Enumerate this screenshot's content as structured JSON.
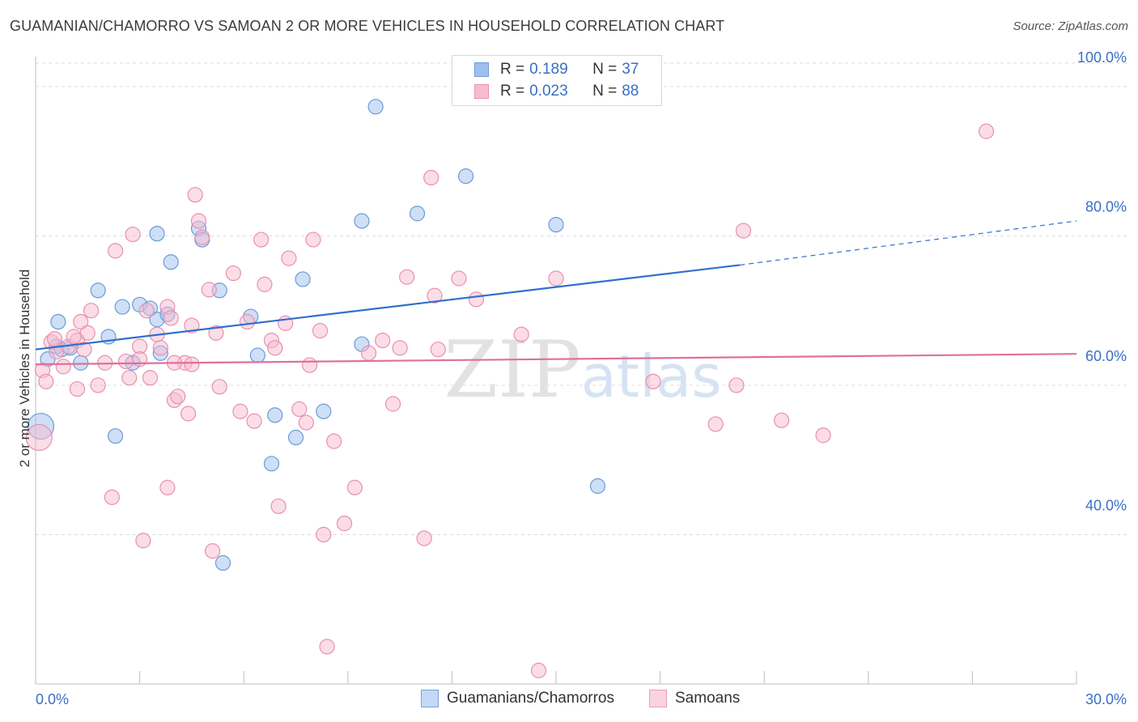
{
  "title": "GUAMANIAN/CHAMORRO VS SAMOAN 2 OR MORE VEHICLES IN HOUSEHOLD CORRELATION CHART",
  "source": "Source: ZipAtlas.com",
  "watermark": "ZIPatlas",
  "legend_top": {
    "rows": [
      {
        "r_label": "R =",
        "r_value": "0.189",
        "n_label": "N =",
        "n_value": "37",
        "color": "#9ec0ee",
        "border": "#6b9bd8"
      },
      {
        "r_label": "R =",
        "r_value": "0.023",
        "n_label": "N =",
        "n_value": "88",
        "color": "#f7bcd0",
        "border": "#e890ae"
      }
    ]
  },
  "legend_bottom": [
    {
      "label": "Guamanians/Chamorros",
      "color": "#c5d8f5",
      "border": "#7aa3dd"
    },
    {
      "label": "Samoans",
      "color": "#fbd3e0",
      "border": "#e99cb7"
    }
  ],
  "chart_data": {
    "type": "scatter",
    "title": "GUAMANIAN/CHAMORRO VS SAMOAN 2 OR MORE VEHICLES IN HOUSEHOLD CORRELATION CHART",
    "xlabel": "",
    "ylabel": "2 or more Vehicles in Household",
    "xlim": [
      0,
      30
    ],
    "ylim": [
      20,
      104
    ],
    "x_tick_labels": [
      {
        "value": 0,
        "label": "0.0%"
      },
      {
        "value": 30,
        "label": "30.0%"
      }
    ],
    "y_tick_labels": [
      {
        "value": 40,
        "label": "40.0%"
      },
      {
        "value": 60,
        "label": "60.0%"
      },
      {
        "value": 80,
        "label": "80.0%"
      },
      {
        "value": 100,
        "label": "100.0%"
      }
    ],
    "grid": true,
    "series": [
      {
        "name": "Guamanians/Chamorros",
        "color": "#9ec0ee",
        "stroke": "#6b9bd8",
        "trend_color": "#2f6fcf",
        "trend": {
          "x0": 0,
          "y0": 64.8,
          "x1": 20.3,
          "y1": 76.1,
          "dash_to_x": 30,
          "dash_to_y": 82.0
        },
        "points": [
          [
            0.15,
            54.5,
            16
          ],
          [
            0.35,
            63.5,
            9
          ],
          [
            0.6,
            65.2,
            9
          ],
          [
            0.75,
            64.8,
            9
          ],
          [
            1.0,
            65.0,
            9
          ],
          [
            1.3,
            63.0,
            9
          ],
          [
            0.65,
            68.5,
            9
          ],
          [
            2.1,
            66.5,
            9
          ],
          [
            1.8,
            72.7,
            9
          ],
          [
            2.5,
            70.5,
            9
          ],
          [
            3.0,
            70.8,
            9
          ],
          [
            3.3,
            70.3,
            9
          ],
          [
            3.5,
            68.8,
            9
          ],
          [
            3.8,
            69.5,
            9
          ],
          [
            3.6,
            64.3,
            9
          ],
          [
            2.8,
            63.0,
            9
          ],
          [
            3.9,
            76.5,
            9
          ],
          [
            4.7,
            81.0,
            9
          ],
          [
            4.8,
            79.5,
            9
          ],
          [
            5.3,
            72.7,
            9
          ],
          [
            3.5,
            80.3,
            9
          ],
          [
            6.2,
            69.2,
            9
          ],
          [
            6.4,
            64.0,
            9
          ],
          [
            6.9,
            56.0,
            9
          ],
          [
            7.5,
            53.0,
            9
          ],
          [
            7.7,
            74.2,
            9
          ],
          [
            8.3,
            56.5,
            9
          ],
          [
            6.8,
            49.5,
            9
          ],
          [
            2.3,
            53.2,
            9
          ],
          [
            5.4,
            36.2,
            9
          ],
          [
            9.4,
            65.5,
            9
          ],
          [
            9.4,
            82.0,
            9
          ],
          [
            9.8,
            97.3,
            9
          ],
          [
            11.0,
            83.0,
            9
          ],
          [
            12.4,
            88.0,
            9
          ],
          [
            15.0,
            81.5,
            9
          ],
          [
            16.2,
            46.5,
            9
          ]
        ]
      },
      {
        "name": "Samoans",
        "color": "#f7bcd0",
        "stroke": "#e890ae",
        "trend_color": "#e0709a",
        "trend": {
          "x0": 0,
          "y0": 62.8,
          "x1": 30,
          "y1": 64.2
        },
        "points": [
          [
            0.1,
            53.0,
            16
          ],
          [
            0.2,
            62.0,
            9
          ],
          [
            0.3,
            60.5,
            9
          ],
          [
            0.45,
            65.8,
            9
          ],
          [
            0.6,
            64.5,
            9
          ],
          [
            0.55,
            66.2,
            9
          ],
          [
            0.8,
            62.5,
            9
          ],
          [
            0.95,
            65.2,
            9
          ],
          [
            1.2,
            66.0,
            9
          ],
          [
            1.4,
            64.8,
            9
          ],
          [
            1.1,
            66.5,
            9
          ],
          [
            1.3,
            68.5,
            9
          ],
          [
            1.5,
            67.0,
            9
          ],
          [
            1.6,
            70.0,
            9
          ],
          [
            1.2,
            59.5,
            9
          ],
          [
            2.0,
            63.0,
            9
          ],
          [
            2.3,
            78.0,
            9
          ],
          [
            2.8,
            80.2,
            9
          ],
          [
            2.7,
            61.0,
            9
          ],
          [
            3.0,
            65.2,
            9
          ],
          [
            3.0,
            63.5,
            9
          ],
          [
            3.2,
            70.0,
            9
          ],
          [
            3.5,
            66.8,
            9
          ],
          [
            3.6,
            65.0,
            9
          ],
          [
            3.8,
            70.5,
            9
          ],
          [
            3.9,
            69.0,
            9
          ],
          [
            4.0,
            58.0,
            9
          ],
          [
            4.1,
            58.5,
            9
          ],
          [
            4.3,
            63.0,
            9
          ],
          [
            4.5,
            62.8,
            9
          ],
          [
            4.4,
            56.2,
            9
          ],
          [
            4.6,
            85.5,
            9
          ],
          [
            4.7,
            82.0,
            9
          ],
          [
            4.8,
            79.8,
            9
          ],
          [
            5.0,
            72.8,
            9
          ],
          [
            5.2,
            67.0,
            9
          ],
          [
            5.3,
            59.8,
            9
          ],
          [
            5.7,
            75.0,
            9
          ],
          [
            5.9,
            56.5,
            9
          ],
          [
            6.3,
            55.2,
            9
          ],
          [
            6.1,
            68.5,
            9
          ],
          [
            6.5,
            79.5,
            9
          ],
          [
            6.8,
            66.0,
            9
          ],
          [
            6.9,
            65.0,
            9
          ],
          [
            6.6,
            73.5,
            9
          ],
          [
            7.2,
            68.3,
            9
          ],
          [
            7.3,
            77.0,
            9
          ],
          [
            7.6,
            56.8,
            9
          ],
          [
            7.8,
            55.0,
            9
          ],
          [
            8.0,
            79.5,
            9
          ],
          [
            7.9,
            62.7,
            9
          ],
          [
            8.2,
            67.3,
            9
          ],
          [
            8.6,
            52.5,
            9
          ],
          [
            2.2,
            45.0,
            9
          ],
          [
            3.1,
            39.2,
            9
          ],
          [
            3.8,
            46.3,
            9
          ],
          [
            5.1,
            37.8,
            9
          ],
          [
            7.0,
            43.8,
            9
          ],
          [
            8.3,
            40.0,
            9
          ],
          [
            8.9,
            41.5,
            9
          ],
          [
            9.2,
            46.3,
            9
          ],
          [
            8.4,
            25.0,
            9
          ],
          [
            10.0,
            66.0,
            9
          ],
          [
            10.3,
            57.5,
            9
          ],
          [
            10.5,
            65.0,
            9
          ],
          [
            10.7,
            74.5,
            9
          ],
          [
            11.2,
            39.5,
            9
          ],
          [
            11.4,
            87.8,
            9
          ],
          [
            11.5,
            72.0,
            9
          ],
          [
            11.6,
            64.8,
            9
          ],
          [
            12.2,
            74.3,
            9
          ],
          [
            12.7,
            71.5,
            9
          ],
          [
            14.0,
            66.8,
            9
          ],
          [
            14.5,
            21.8,
            9
          ],
          [
            15.0,
            74.3,
            9
          ],
          [
            17.8,
            60.5,
            9
          ],
          [
            19.6,
            54.8,
            9
          ],
          [
            20.2,
            60.0,
            9
          ],
          [
            20.4,
            80.7,
            9
          ],
          [
            21.5,
            55.3,
            9
          ],
          [
            22.7,
            53.3,
            9
          ],
          [
            27.4,
            94.0,
            9
          ],
          [
            4.0,
            63.0,
            9
          ],
          [
            3.3,
            61.0,
            9
          ],
          [
            1.8,
            60.0,
            9
          ],
          [
            4.5,
            68.0,
            9
          ],
          [
            9.6,
            64.3,
            9
          ],
          [
            2.6,
            63.2,
            9
          ]
        ]
      }
    ]
  }
}
